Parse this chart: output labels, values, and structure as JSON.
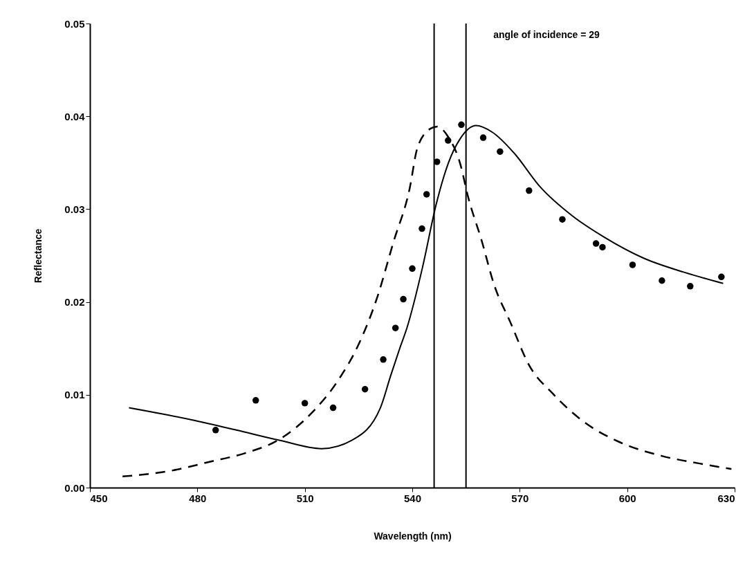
{
  "chart_data": {
    "type": "line",
    "xlabel": "Wavelength (nm)",
    "ylabel": "Reflectance",
    "annotations": [
      "angle of incidence = 29"
    ],
    "xlim": [
      450,
      630
    ],
    "xticks": [
      450,
      480,
      510,
      540,
      570,
      600,
      630
    ],
    "ylim": [
      0,
      0.05
    ],
    "yticks": [
      {
        "value": 0,
        "label": "0.00"
      },
      {
        "value": 0.01,
        "label": "0.01"
      },
      {
        "value": 0.02,
        "label": "0.02"
      },
      {
        "value": 0.03,
        "label": "0.03"
      },
      {
        "value": 0.04,
        "label": "0.04"
      },
      {
        "value": 0.05,
        "label": "0.05"
      }
    ],
    "grid": false,
    "series": [
      {
        "color": "#000000",
        "line_style": "solid",
        "x": [
          460.9,
          478.4,
          490.9,
          502.9,
          514.7,
          523.6,
          531.1,
          534.0,
          536.5,
          538.5,
          542.9,
          546.6,
          550.1,
          553.4,
          557.8,
          562.3,
          568.3,
          575.7,
          584.6,
          593.5,
          604.7,
          615.9,
          626.8
        ],
        "values": [
          0.0086,
          0.0073,
          0.0062,
          0.0051,
          0.0042,
          0.0052,
          0.0086,
          0.0121,
          0.015,
          0.0172,
          0.0238,
          0.0304,
          0.035,
          0.0376,
          0.039,
          0.0383,
          0.0361,
          0.0324,
          0.0293,
          0.027,
          0.0247,
          0.0232,
          0.022
        ]
      },
      {
        "color": "#000000",
        "line_style": "dashed",
        "x": [
          459.1,
          472.4,
          483.6,
          493.2,
          502.9,
          511.8,
          519.2,
          525.1,
          530.3,
          534.7,
          539.2,
          541.5,
          545.2,
          547.0,
          550.0,
          553.3,
          555.6,
          559.3,
          562.9,
          567.4,
          572.6,
          579.3,
          587.5,
          597.9,
          609.8,
          620.2,
          629.1
        ],
        "values": [
          0.0012,
          0.0018,
          0.0028,
          0.0037,
          0.0052,
          0.008,
          0.0115,
          0.0155,
          0.0206,
          0.0264,
          0.0321,
          0.0367,
          0.0387,
          0.0389,
          0.0378,
          0.035,
          0.0313,
          0.0267,
          0.0218,
          0.0178,
          0.0132,
          0.0101,
          0.0072,
          0.0049,
          0.0034,
          0.0026,
          0.002
        ]
      },
      {
        "type": "scatter",
        "color": "#000000",
        "marker": "circle",
        "x": [
          485.1,
          496.3,
          510.0,
          517.9,
          526.8,
          531.9,
          535.3,
          537.5,
          540.0,
          542.7,
          544.0,
          546.9,
          550.0,
          553.7,
          559.8,
          564.5,
          572.6,
          581.9,
          591.3,
          593.1,
          601.5,
          609.7,
          617.6,
          626.3
        ],
        "values": [
          0.0062,
          0.0094,
          0.0091,
          0.0086,
          0.0106,
          0.0138,
          0.0172,
          0.0203,
          0.0236,
          0.0279,
          0.0316,
          0.0351,
          0.0374,
          0.0391,
          0.0377,
          0.0362,
          0.032,
          0.0289,
          0.0263,
          0.0259,
          0.024,
          0.0223,
          0.0217,
          0.0227
        ]
      }
    ],
    "ref_lines": [
      {
        "axis": "x",
        "value": 546.1,
        "color": "#000000"
      },
      {
        "axis": "x",
        "value": 555.0,
        "color": "#000000"
      }
    ]
  }
}
